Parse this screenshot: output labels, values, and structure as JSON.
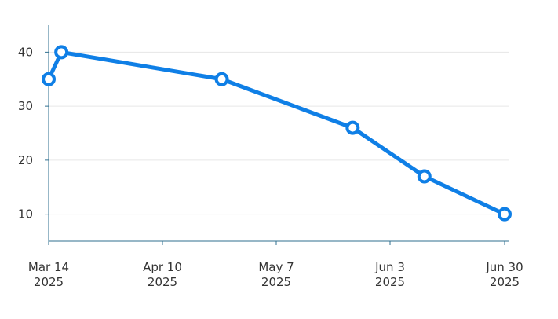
{
  "chart_data": {
    "type": "line",
    "title": "",
    "xlabel": "",
    "ylabel": "",
    "x_axis": {
      "type": "date",
      "range": [
        "2025-03-14",
        "2025-06-30"
      ],
      "ticks": [
        {
          "date": "2025-03-14",
          "label_line1": "Mar 14",
          "label_line2": "2025"
        },
        {
          "date": "2025-04-10",
          "label_line1": "Apr 10",
          "label_line2": "2025"
        },
        {
          "date": "2025-05-07",
          "label_line1": "May 7",
          "label_line2": "2025"
        },
        {
          "date": "2025-06-03",
          "label_line1": "Jun 3",
          "label_line2": "2025"
        },
        {
          "date": "2025-06-30",
          "label_line1": "Jun 30",
          "label_line2": "2025"
        }
      ]
    },
    "y_axis": {
      "range": [
        5,
        45
      ],
      "ticks": [
        10,
        20,
        30,
        40
      ],
      "grid": true
    },
    "series": [
      {
        "color": "#0f7fe6",
        "points": [
          {
            "x": "2025-03-14",
            "y": 35
          },
          {
            "x": "2025-03-17",
            "y": 40
          },
          {
            "x": "2025-04-24",
            "y": 35
          },
          {
            "x": "2025-05-25",
            "y": 26
          },
          {
            "x": "2025-06-11",
            "y": 17
          },
          {
            "x": "2025-06-30",
            "y": 10
          }
        ]
      }
    ],
    "legend": "none"
  }
}
